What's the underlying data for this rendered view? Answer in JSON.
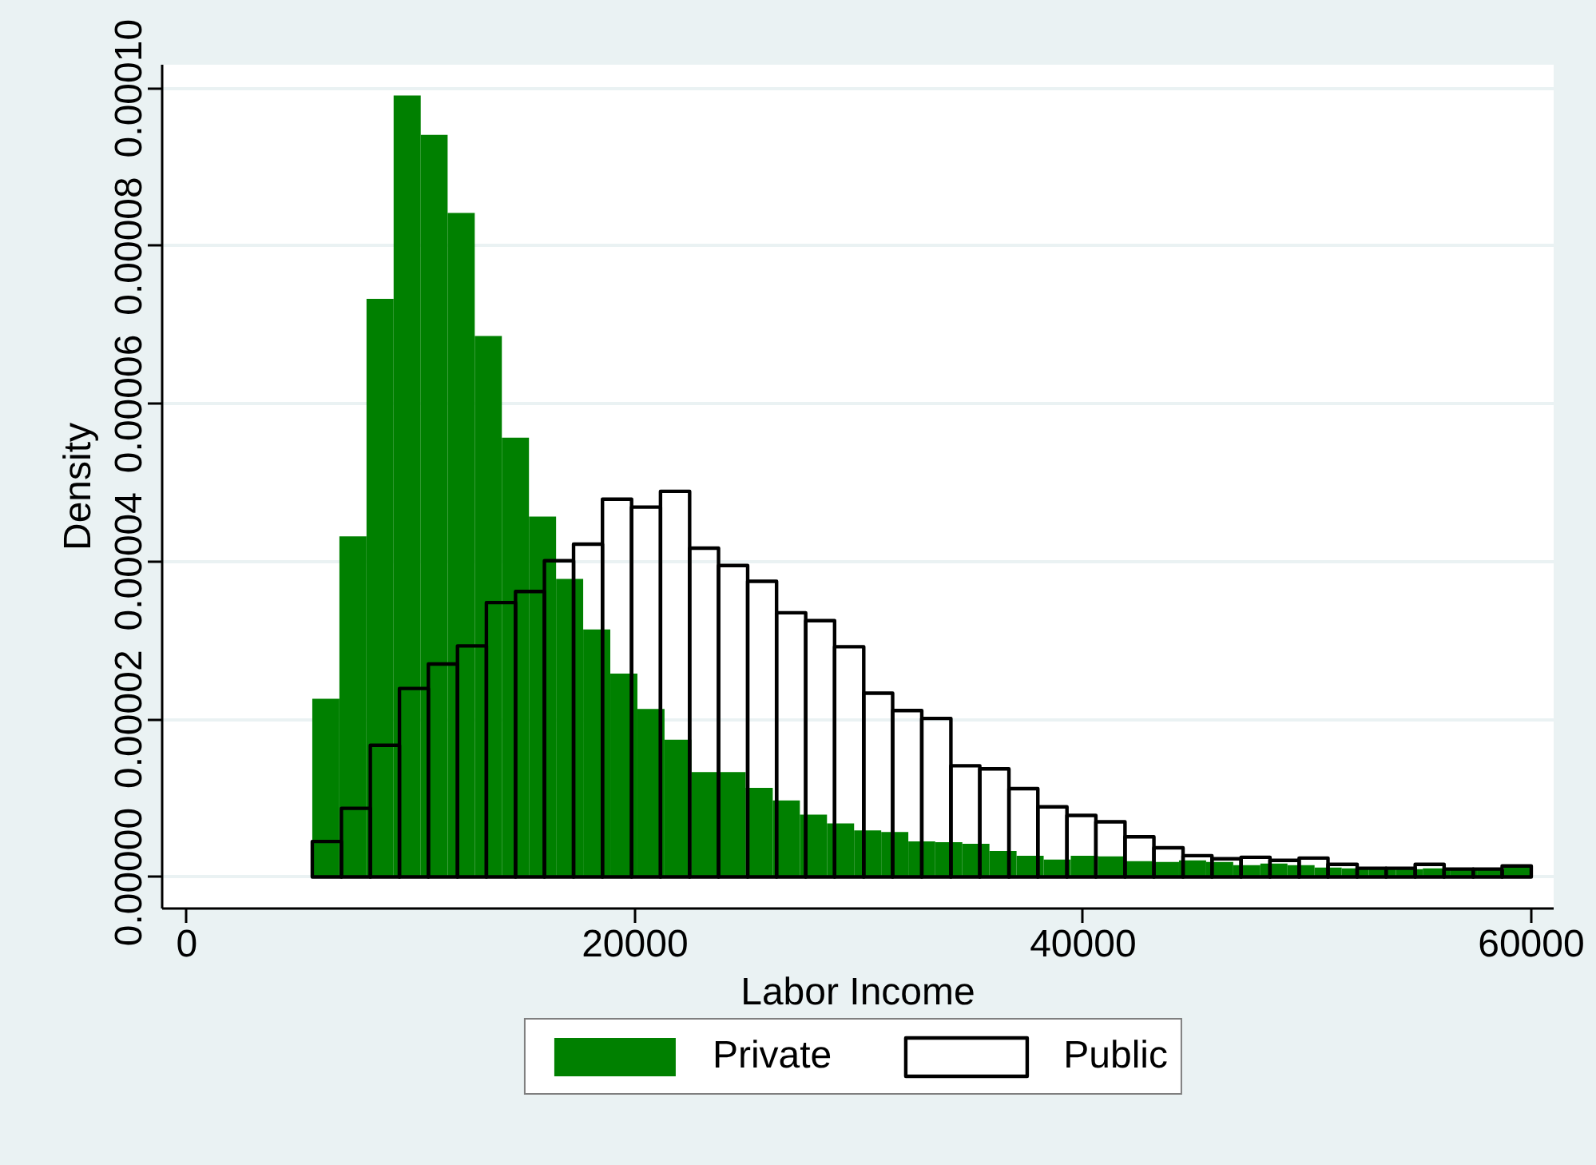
{
  "chart_data": {
    "type": "histogram",
    "xlabel": "Labor Income",
    "ylabel": "Density",
    "xlim": [
      -1100,
      61000
    ],
    "ylim": [
      -4e-06,
      0.000103
    ],
    "xticks": [
      0,
      20000,
      40000,
      60000
    ],
    "yticks": [
      {
        "value": 0,
        "label": "0.00000"
      },
      {
        "value": 2e-05,
        "label": "0.00002"
      },
      {
        "value": 4e-05,
        "label": "0.00004"
      },
      {
        "value": 6e-05,
        "label": "0.00006"
      },
      {
        "value": 8e-05,
        "label": "0.00008"
      },
      {
        "value": 0.0001,
        "label": "0.00010"
      }
    ],
    "grid": "y",
    "legend": "bottom",
    "bins": [
      5600,
      6810,
      8020,
      9230,
      10440,
      11640,
      12850,
      14060,
      15270,
      16480,
      17690,
      18900,
      20110,
      21320,
      22520,
      23730,
      24940,
      26150,
      27360,
      28570,
      29780,
      30990,
      32200,
      33400,
      34610,
      35820,
      37030,
      38240,
      39450,
      40660,
      41870,
      43080,
      44280,
      45490,
      46700,
      47910,
      49120,
      50330,
      51540,
      52750,
      53960,
      55160,
      56370,
      57580,
      58790,
      60000
    ],
    "series": [
      {
        "name": "Private",
        "color": "#008000",
        "values": [
          2.26e-05,
          4.32e-05,
          7.33e-05,
          9.91e-05,
          9.41e-05,
          8.42e-05,
          6.86e-05,
          5.57e-05,
          4.57e-05,
          3.78e-05,
          3.14e-05,
          2.58e-05,
          2.13e-05,
          1.74e-05,
          1.33e-05,
          1.33e-05,
          1.13e-05,
          9.7e-06,
          7.9e-06,
          6.8e-06,
          5.9e-06,
          5.7e-06,
          4.5e-06,
          4.4e-06,
          4.2e-06,
          3.3e-06,
          2.7e-06,
          2.2e-06,
          2.7e-06,
          2.6e-06,
          2e-06,
          1.9e-06,
          2.1e-06,
          1.9e-06,
          1.5e-06,
          1.7e-06,
          1.5e-06,
          1.2e-06,
          1.1e-06,
          1e-06,
          1e-06,
          1.1e-06,
          9e-07,
          9e-07,
          1.2e-06
        ]
      },
      {
        "name": "Public",
        "color": "#000000",
        "line_style": "solid",
        "bins": [
          5600,
          6900,
          8190,
          9490,
          10780,
          12080,
          13370,
          14670,
          15960,
          17260,
          18550,
          19850,
          21140,
          22440,
          23730,
          25030,
          26320,
          27620,
          28910,
          30210,
          31500,
          32800,
          34100,
          35390,
          36690,
          37980,
          39280,
          40570,
          41870,
          43160,
          44460,
          45750,
          47050,
          48340,
          49640,
          50930,
          52230,
          53520,
          54820,
          56110,
          57410,
          58700,
          60000
        ],
        "values": [
          4.5e-06,
          8.7e-06,
          1.67e-05,
          2.39e-05,
          2.7e-05,
          2.93e-05,
          3.48e-05,
          3.62e-05,
          4.01e-05,
          4.22e-05,
          4.79e-05,
          4.69e-05,
          4.89e-05,
          4.17e-05,
          3.95e-05,
          3.75e-05,
          3.35e-05,
          3.25e-05,
          2.92e-05,
          2.33e-05,
          2.11e-05,
          2.01e-05,
          1.41e-05,
          1.37e-05,
          1.12e-05,
          8.9e-06,
          7.8e-06,
          7e-06,
          5.1e-06,
          3.7e-06,
          2.7e-06,
          2.3e-06,
          2.5e-06,
          2.1e-06,
          2.4e-06,
          1.6e-06,
          1.1e-06,
          1.1e-06,
          1.6e-06,
          1e-06,
          1e-06,
          1.4e-06
        ]
      }
    ]
  }
}
